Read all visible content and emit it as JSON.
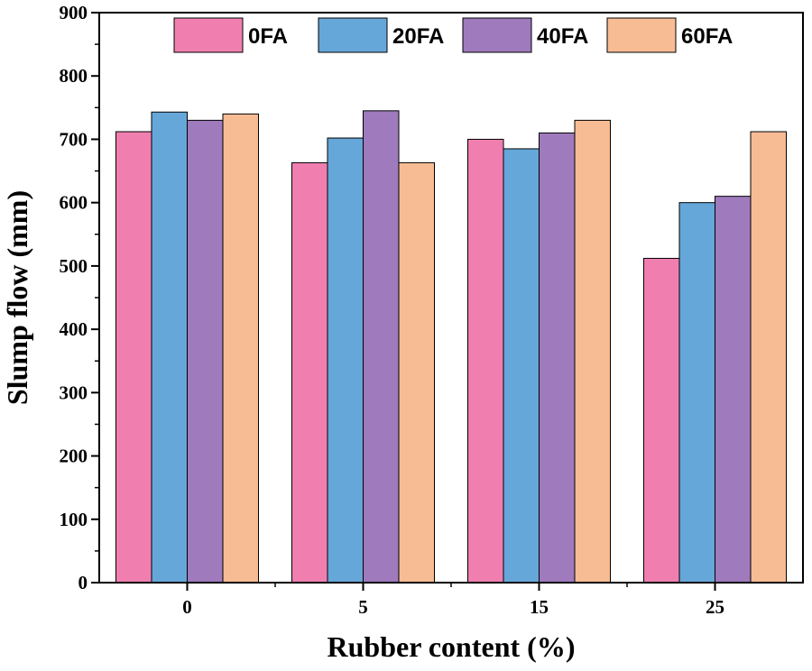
{
  "chart_data": {
    "type": "bar",
    "title": "",
    "xlabel": "Rubber content (%)",
    "ylabel": "Slump flow (mm)",
    "categories": [
      "0",
      "5",
      "15",
      "25"
    ],
    "ylim": [
      0,
      900
    ],
    "yticks": [
      0,
      100,
      200,
      300,
      400,
      500,
      600,
      700,
      800,
      900
    ],
    "legend_position": "top",
    "grid": false,
    "series": [
      {
        "name": "0FA",
        "color": "#F07FB0",
        "values": [
          712,
          663,
          700,
          512
        ]
      },
      {
        "name": "20FA",
        "color": "#66A7DA",
        "values": [
          743,
          702,
          685,
          600
        ]
      },
      {
        "name": "40FA",
        "color": "#9F7ABC",
        "values": [
          730,
          745,
          710,
          610
        ]
      },
      {
        "name": "60FA",
        "color": "#F8BC94",
        "values": [
          740,
          663,
          730,
          712
        ]
      }
    ]
  }
}
